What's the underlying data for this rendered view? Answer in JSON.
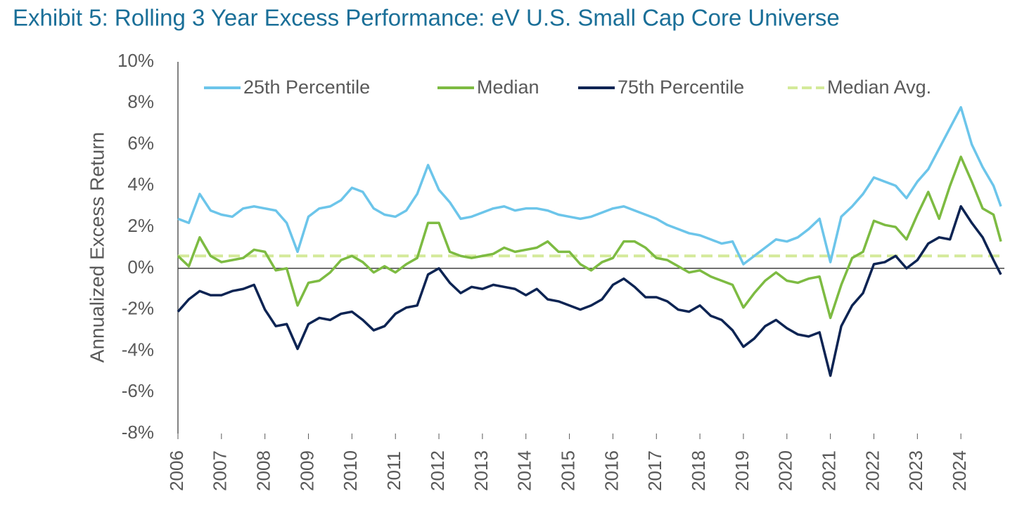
{
  "chart_data": {
    "type": "line",
    "title": "Exhibit 5: Rolling 3 Year Excess Performance: eV U.S. Small Cap Core Universe",
    "y_label": "Annualized Excess Return",
    "x": [
      2006,
      2006.25,
      2006.5,
      2006.75,
      2007,
      2007.25,
      2007.5,
      2007.75,
      2008,
      2008.25,
      2008.5,
      2008.75,
      2009,
      2009.25,
      2009.5,
      2009.75,
      2010,
      2010.25,
      2010.5,
      2010.75,
      2011,
      2011.25,
      2011.5,
      2011.75,
      2012,
      2012.25,
      2012.5,
      2012.75,
      2013,
      2013.25,
      2013.5,
      2013.75,
      2014,
      2014.25,
      2014.5,
      2014.75,
      2015,
      2015.25,
      2015.5,
      2015.75,
      2016,
      2016.25,
      2016.5,
      2016.75,
      2017,
      2017.25,
      2017.5,
      2017.75,
      2018,
      2018.25,
      2018.5,
      2018.75,
      2019,
      2019.25,
      2019.5,
      2019.75,
      2020,
      2020.25,
      2020.5,
      2020.75,
      2021,
      2021.25,
      2021.5,
      2021.75,
      2022,
      2022.25,
      2022.5,
      2022.75,
      2023,
      2023.25,
      2023.5,
      2023.75,
      2024,
      2024.25,
      2024.5,
      2024.75,
      2024.92
    ],
    "series": [
      {
        "name": "25th Percentile",
        "color": "#6cc5ea",
        "values": [
          2.4,
          2.2,
          3.6,
          2.8,
          2.6,
          2.5,
          2.9,
          3.0,
          2.9,
          2.8,
          2.2,
          0.8,
          2.5,
          2.9,
          3.0,
          3.3,
          3.9,
          3.7,
          2.9,
          2.6,
          2.5,
          2.8,
          3.6,
          5.0,
          3.8,
          3.2,
          2.4,
          2.5,
          2.7,
          2.9,
          3.0,
          2.8,
          2.9,
          2.9,
          2.8,
          2.6,
          2.5,
          2.4,
          2.5,
          2.7,
          2.9,
          3.0,
          2.8,
          2.6,
          2.4,
          2.1,
          1.9,
          1.7,
          1.6,
          1.4,
          1.2,
          1.3,
          0.2,
          0.6,
          1.0,
          1.4,
          1.3,
          1.5,
          1.9,
          2.4,
          0.3,
          2.5,
          3.0,
          3.6,
          4.4,
          4.2,
          4.0,
          3.4,
          4.2,
          4.8,
          5.8,
          6.8,
          7.8,
          6.0,
          4.9,
          4.0,
          3.0
        ]
      },
      {
        "name": "Median",
        "color": "#7dbb42",
        "values": [
          0.6,
          0.1,
          1.5,
          0.6,
          0.3,
          0.4,
          0.5,
          0.9,
          0.8,
          -0.1,
          0.0,
          -1.8,
          -0.7,
          -0.6,
          -0.2,
          0.4,
          0.6,
          0.3,
          -0.2,
          0.1,
          -0.2,
          0.2,
          0.5,
          2.2,
          2.2,
          0.8,
          0.6,
          0.5,
          0.6,
          0.7,
          1.0,
          0.8,
          0.9,
          1.0,
          1.3,
          0.8,
          0.8,
          0.2,
          -0.1,
          0.3,
          0.5,
          1.3,
          1.3,
          1.0,
          0.5,
          0.4,
          0.1,
          -0.2,
          -0.1,
          -0.4,
          -0.6,
          -0.8,
          -1.9,
          -1.2,
          -0.6,
          -0.2,
          -0.6,
          -0.7,
          -0.5,
          -0.4,
          -2.4,
          -0.8,
          0.5,
          0.8,
          2.3,
          2.1,
          2.0,
          1.4,
          2.6,
          3.7,
          2.4,
          4.0,
          5.4,
          4.2,
          2.9,
          2.6,
          1.3
        ]
      },
      {
        "name": "75th Percentile",
        "color": "#0d2453",
        "values": [
          -2.1,
          -1.5,
          -1.1,
          -1.3,
          -1.3,
          -1.1,
          -1.0,
          -0.8,
          -2.0,
          -2.8,
          -2.7,
          -3.9,
          -2.7,
          -2.4,
          -2.5,
          -2.2,
          -2.1,
          -2.5,
          -3.0,
          -2.8,
          -2.2,
          -1.9,
          -1.8,
          -0.3,
          0.0,
          -0.7,
          -1.2,
          -0.9,
          -1.0,
          -0.8,
          -0.9,
          -1.0,
          -1.3,
          -1.0,
          -1.5,
          -1.6,
          -1.8,
          -2.0,
          -1.8,
          -1.5,
          -0.8,
          -0.5,
          -0.9,
          -1.4,
          -1.4,
          -1.6,
          -2.0,
          -2.1,
          -1.8,
          -2.3,
          -2.5,
          -3.0,
          -3.8,
          -3.4,
          -2.8,
          -2.5,
          -2.9,
          -3.2,
          -3.3,
          -3.1,
          -5.2,
          -2.8,
          -1.8,
          -1.2,
          0.2,
          0.3,
          0.6,
          0.0,
          0.4,
          1.2,
          1.5,
          1.4,
          3.0,
          2.2,
          1.5,
          0.4,
          -0.3
        ]
      }
    ],
    "reference_line": {
      "name": "Median Avg.",
      "value": 0.6,
      "color": "#d4ea9a",
      "dashed": true
    },
    "xlim": [
      2006,
      2025
    ],
    "xticks": [
      2006,
      2007,
      2008,
      2009,
      2010,
      2011,
      2012,
      2013,
      2014,
      2015,
      2016,
      2017,
      2018,
      2019,
      2020,
      2021,
      2022,
      2023,
      2024
    ],
    "ylim": [
      -8,
      10
    ],
    "yticks": [
      {
        "value": -8,
        "label": "-8%"
      },
      {
        "value": -6,
        "label": "-6%"
      },
      {
        "value": -4,
        "label": "-4%"
      },
      {
        "value": -2,
        "label": "-2%"
      },
      {
        "value": 0,
        "label": "0%"
      },
      {
        "value": 2,
        "label": "2%"
      },
      {
        "value": 4,
        "label": "4%"
      },
      {
        "value": 6,
        "label": "6%"
      },
      {
        "value": 8,
        "label": "8%"
      },
      {
        "value": 10,
        "label": "10%"
      }
    ],
    "legend": "top"
  }
}
